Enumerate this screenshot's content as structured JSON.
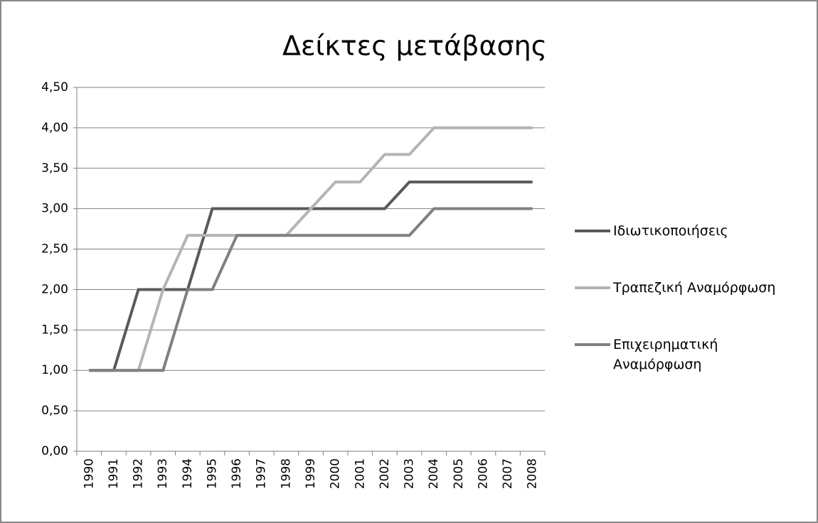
{
  "chart_data": {
    "type": "line",
    "title": "Δείκτες μετάβασης",
    "categories": [
      "1990",
      "1991",
      "1992",
      "1993",
      "1994",
      "1995",
      "1996",
      "1997",
      "1998",
      "1999",
      "2000",
      "2001",
      "2002",
      "2003",
      "2004",
      "2005",
      "2006",
      "2007",
      "2008"
    ],
    "series": [
      {
        "name": "Ιδιωτικοποιήσεις",
        "color": "#5a5a5a",
        "values": [
          1,
          1,
          2,
          2,
          2,
          3,
          3,
          3,
          3,
          3,
          3,
          3,
          3,
          3.33,
          3.33,
          3.33,
          3.33,
          3.33,
          3.33
        ]
      },
      {
        "name": "Τραπεζική Αναμόρφωση",
        "color": "#b4b4b4",
        "values": [
          1,
          1,
          1,
          2,
          2.67,
          2.67,
          2.67,
          2.67,
          2.67,
          3,
          3.33,
          3.33,
          3.67,
          3.67,
          4,
          4,
          4,
          4,
          4
        ]
      },
      {
        "name": "Επιχειρηματική Αναμόρφωση",
        "color": "#808080",
        "values": [
          1,
          1,
          1,
          1,
          2,
          2,
          2.67,
          2.67,
          2.67,
          2.67,
          2.67,
          2.67,
          2.67,
          2.67,
          3,
          3,
          3,
          3,
          3
        ]
      }
    ],
    "ylim": [
      0,
      4.5
    ],
    "yticks": [
      {
        "value": 0,
        "label": "0,00"
      },
      {
        "value": 0.5,
        "label": "0,50"
      },
      {
        "value": 1,
        "label": "1,00"
      },
      {
        "value": 1.5,
        "label": "1,50"
      },
      {
        "value": 2,
        "label": "2,00"
      },
      {
        "value": 2.5,
        "label": "2,50"
      },
      {
        "value": 3,
        "label": "3,00"
      },
      {
        "value": 3.5,
        "label": "3,50"
      },
      {
        "value": 4,
        "label": "4,00"
      },
      {
        "value": 4.5,
        "label": "4,50"
      }
    ],
    "grid": true,
    "legend": "right"
  }
}
